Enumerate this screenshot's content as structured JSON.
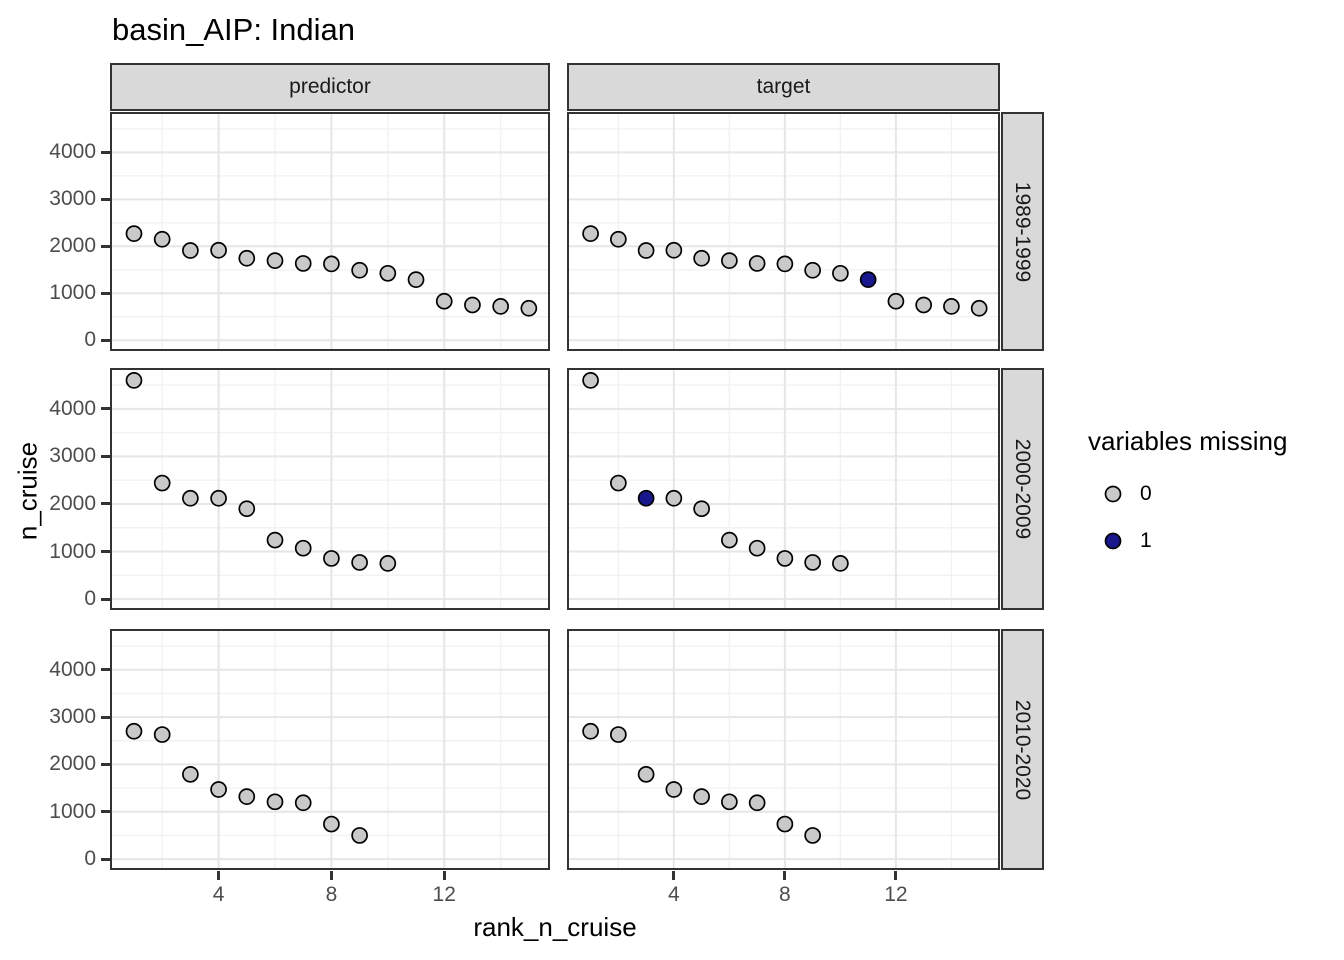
{
  "chart_data": {
    "type": "scatter",
    "title": "basin_AIP: Indian",
    "xlabel": "rank_n_cruise",
    "ylabel": "n_cruise",
    "facet_columns": [
      "predictor",
      "target"
    ],
    "facet_rows": [
      "1989-1999",
      "2000-2009",
      "2010-2020"
    ],
    "x_ticks": [
      4,
      8,
      12
    ],
    "x_minor_ticks": [
      2,
      6,
      10,
      14
    ],
    "y_ticks": [
      0,
      1000,
      2000,
      3000,
      4000
    ],
    "y_minor_ticks": [
      500,
      1500,
      2500,
      3500,
      4500
    ],
    "x_domain": [
      0.15,
      15.75
    ],
    "y_domain": [
      -230,
      4860
    ],
    "grid": true,
    "legend": {
      "title": "variables missing",
      "position": "right",
      "entries": [
        {
          "label": "0",
          "color": "#C9C9C9"
        },
        {
          "label": "1",
          "color": "#18188C"
        }
      ]
    },
    "point_stroke": "#000000",
    "panels": [
      {
        "facet_row": "1989-1999",
        "facet_col": "predictor",
        "x": [
          1,
          2,
          3,
          4,
          5,
          6,
          7,
          8,
          9,
          10,
          11,
          12,
          13,
          14,
          15
        ],
        "y": [
          2270,
          2150,
          1910,
          1915,
          1745,
          1695,
          1635,
          1625,
          1490,
          1425,
          1290,
          830,
          750,
          720,
          680
        ],
        "missing": [
          0,
          0,
          0,
          0,
          0,
          0,
          0,
          0,
          0,
          0,
          0,
          0,
          0,
          0,
          0
        ]
      },
      {
        "facet_row": "1989-1999",
        "facet_col": "target",
        "x": [
          1,
          2,
          3,
          4,
          5,
          6,
          7,
          8,
          9,
          10,
          11,
          12,
          13,
          14,
          15
        ],
        "y": [
          2270,
          2150,
          1910,
          1915,
          1745,
          1695,
          1635,
          1625,
          1490,
          1425,
          1290,
          830,
          750,
          720,
          680
        ],
        "missing": [
          0,
          0,
          0,
          0,
          0,
          0,
          0,
          0,
          0,
          0,
          1,
          0,
          0,
          0,
          0
        ]
      },
      {
        "facet_row": "2000-2009",
        "facet_col": "predictor",
        "x": [
          1,
          2,
          3,
          4,
          5,
          6,
          7,
          8,
          9,
          10
        ],
        "y": [
          4600,
          2440,
          2120,
          2120,
          1900,
          1240,
          1070,
          855,
          770,
          750
        ],
        "missing": [
          0,
          0,
          0,
          0,
          0,
          0,
          0,
          0,
          0,
          0
        ]
      },
      {
        "facet_row": "2000-2009",
        "facet_col": "target",
        "x": [
          1,
          2,
          3,
          4,
          5,
          6,
          7,
          8,
          9,
          10
        ],
        "y": [
          4600,
          2440,
          2120,
          2120,
          1900,
          1240,
          1070,
          855,
          770,
          750
        ],
        "missing": [
          0,
          0,
          1,
          0,
          0,
          0,
          0,
          0,
          0,
          0
        ]
      },
      {
        "facet_row": "2010-2020",
        "facet_col": "predictor",
        "x": [
          1,
          2,
          3,
          4,
          5,
          6,
          7,
          8,
          9
        ],
        "y": [
          2700,
          2630,
          1790,
          1470,
          1320,
          1210,
          1190,
          740,
          500
        ],
        "missing": [
          0,
          0,
          0,
          0,
          0,
          0,
          0,
          0,
          0
        ]
      },
      {
        "facet_row": "2010-2020",
        "facet_col": "target",
        "x": [
          1,
          2,
          3,
          4,
          5,
          6,
          7,
          8,
          9
        ],
        "y": [
          2700,
          2630,
          1790,
          1470,
          1320,
          1210,
          1190,
          740,
          500
        ],
        "missing": [
          0,
          0,
          0,
          0,
          0,
          0,
          0,
          0,
          0
        ]
      }
    ]
  }
}
